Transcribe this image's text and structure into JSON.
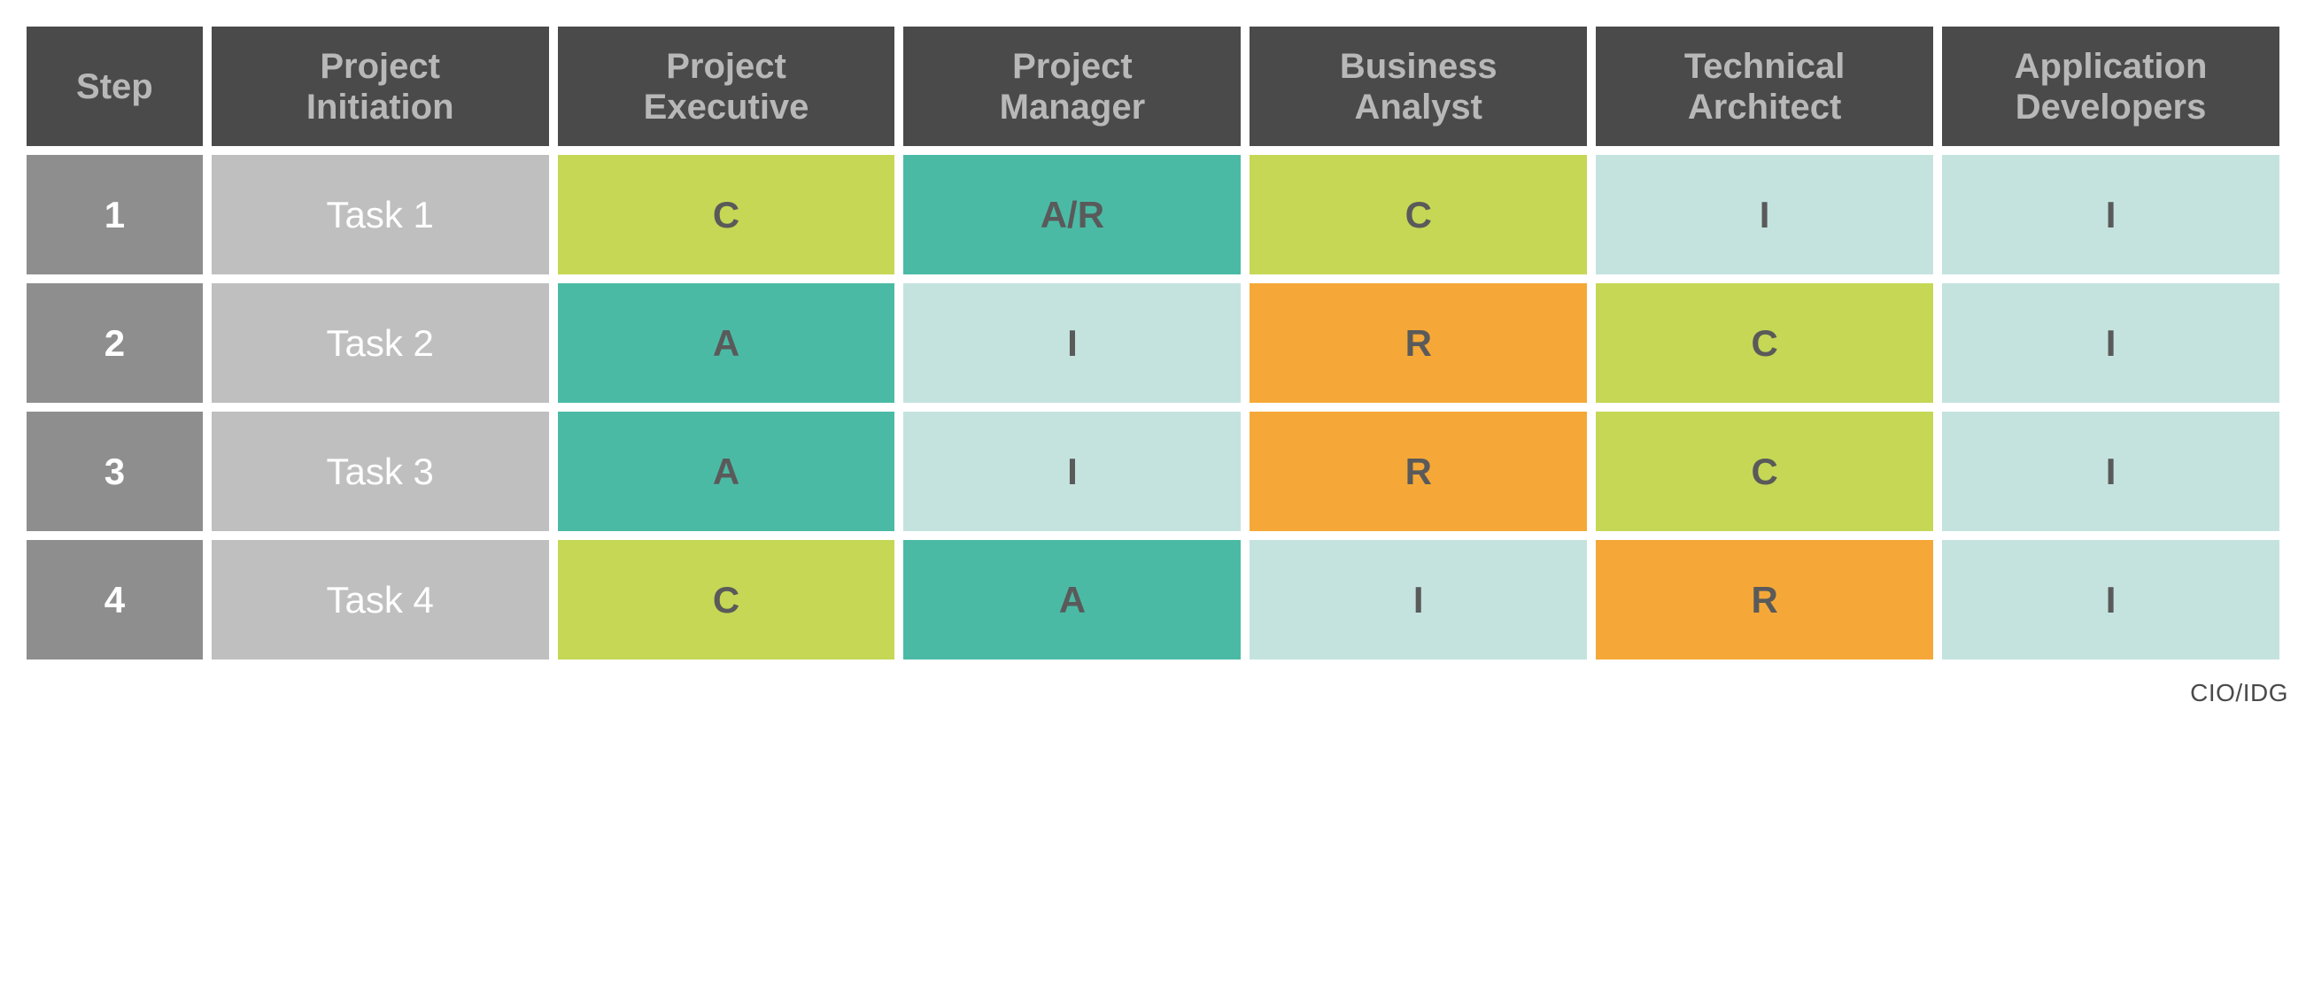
{
  "table": {
    "type": "table",
    "header_bg_color": "#4a4a4a",
    "header_text_color": "#b8b8b8",
    "step_col_bg_color": "#8e8e8e",
    "step_col_text_color": "#ffffff",
    "task_col_bg_color": "#bfbfbf",
    "task_col_text_color": "#ffffff",
    "cell_text_color": "#5a5a5a",
    "cell_bg_colors": {
      "lime": "#c5d755",
      "teal": "#4bbaa5",
      "pale_teal": "#c4e3df",
      "orange": "#f5a838"
    },
    "header_fontsize": 40,
    "cell_fontsize": 42,
    "columns": [
      "Step",
      "Project Initiation",
      "Project Executive",
      "Project Manager",
      "Business Analyst",
      "Technical Architect",
      "Application Developers"
    ],
    "rows": [
      {
        "step": "1",
        "task": "Task 1",
        "cells": [
          {
            "value": "C",
            "color": "lime"
          },
          {
            "value": "A/R",
            "color": "teal"
          },
          {
            "value": "C",
            "color": "lime"
          },
          {
            "value": "I",
            "color": "pale_teal"
          },
          {
            "value": "I",
            "color": "pale_teal"
          }
        ]
      },
      {
        "step": "2",
        "task": "Task 2",
        "cells": [
          {
            "value": "A",
            "color": "teal"
          },
          {
            "value": "I",
            "color": "pale_teal"
          },
          {
            "value": "R",
            "color": "orange"
          },
          {
            "value": "C",
            "color": "lime"
          },
          {
            "value": "I",
            "color": "pale_teal"
          }
        ]
      },
      {
        "step": "3",
        "task": "Task 3",
        "cells": [
          {
            "value": "A",
            "color": "teal"
          },
          {
            "value": "I",
            "color": "pale_teal"
          },
          {
            "value": "R",
            "color": "orange"
          },
          {
            "value": "C",
            "color": "lime"
          },
          {
            "value": "I",
            "color": "pale_teal"
          }
        ]
      },
      {
        "step": "4",
        "task": "Task 4",
        "cells": [
          {
            "value": "C",
            "color": "lime"
          },
          {
            "value": "A",
            "color": "teal"
          },
          {
            "value": "I",
            "color": "pale_teal"
          },
          {
            "value": "R",
            "color": "orange"
          },
          {
            "value": "I",
            "color": "pale_teal"
          }
        ]
      }
    ]
  },
  "attribution": "CIO/IDG"
}
